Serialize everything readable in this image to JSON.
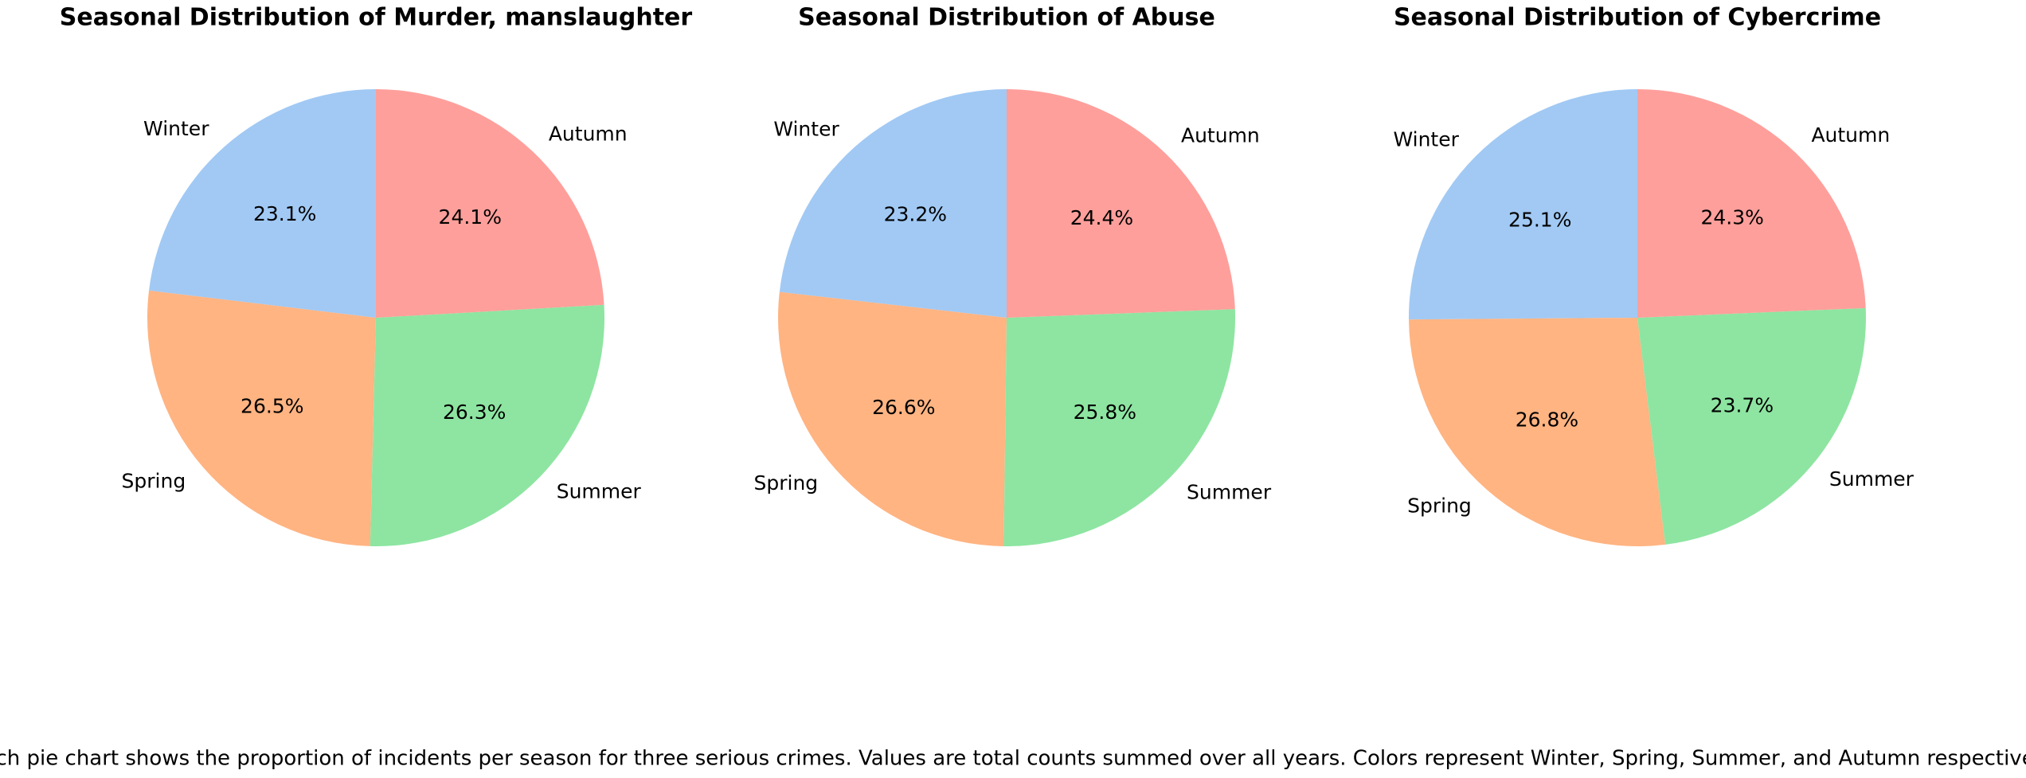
{
  "chart_data": [
    {
      "type": "pie",
      "title": "Seasonal Distribution of Murder, manslaughter",
      "categories": [
        "Winter",
        "Spring",
        "Summer",
        "Autumn"
      ],
      "values": [
        23.1,
        26.5,
        26.3,
        24.1
      ],
      "value_labels": [
        "23.1%",
        "26.5%",
        "26.3%",
        "24.1%"
      ],
      "colors": [
        "#a1c9f4",
        "#ffb482",
        "#8de5a1",
        "#ff9f9b"
      ]
    },
    {
      "type": "pie",
      "title": "Seasonal Distribution of Abuse",
      "categories": [
        "Winter",
        "Spring",
        "Summer",
        "Autumn"
      ],
      "values": [
        23.2,
        26.6,
        25.8,
        24.4
      ],
      "value_labels": [
        "23.2%",
        "26.6%",
        "25.8%",
        "24.4%"
      ],
      "colors": [
        "#a1c9f4",
        "#ffb482",
        "#8de5a1",
        "#ff9f9b"
      ]
    },
    {
      "type": "pie",
      "title": "Seasonal Distribution of Cybercrime",
      "categories": [
        "Winter",
        "Spring",
        "Summer",
        "Autumn"
      ],
      "values": [
        25.1,
        26.8,
        23.7,
        24.3
      ],
      "value_labels": [
        "25.1%",
        "26.8%",
        "23.7%",
        "24.3%"
      ],
      "colors": [
        "#a1c9f4",
        "#ffb482",
        "#8de5a1",
        "#ff9f9b"
      ]
    }
  ],
  "caption": "Each pie chart shows the proportion of incidents per season for three serious crimes. Values are total counts summed over all years. Colors represent Winter, Spring, Summer, and Autumn respectively."
}
